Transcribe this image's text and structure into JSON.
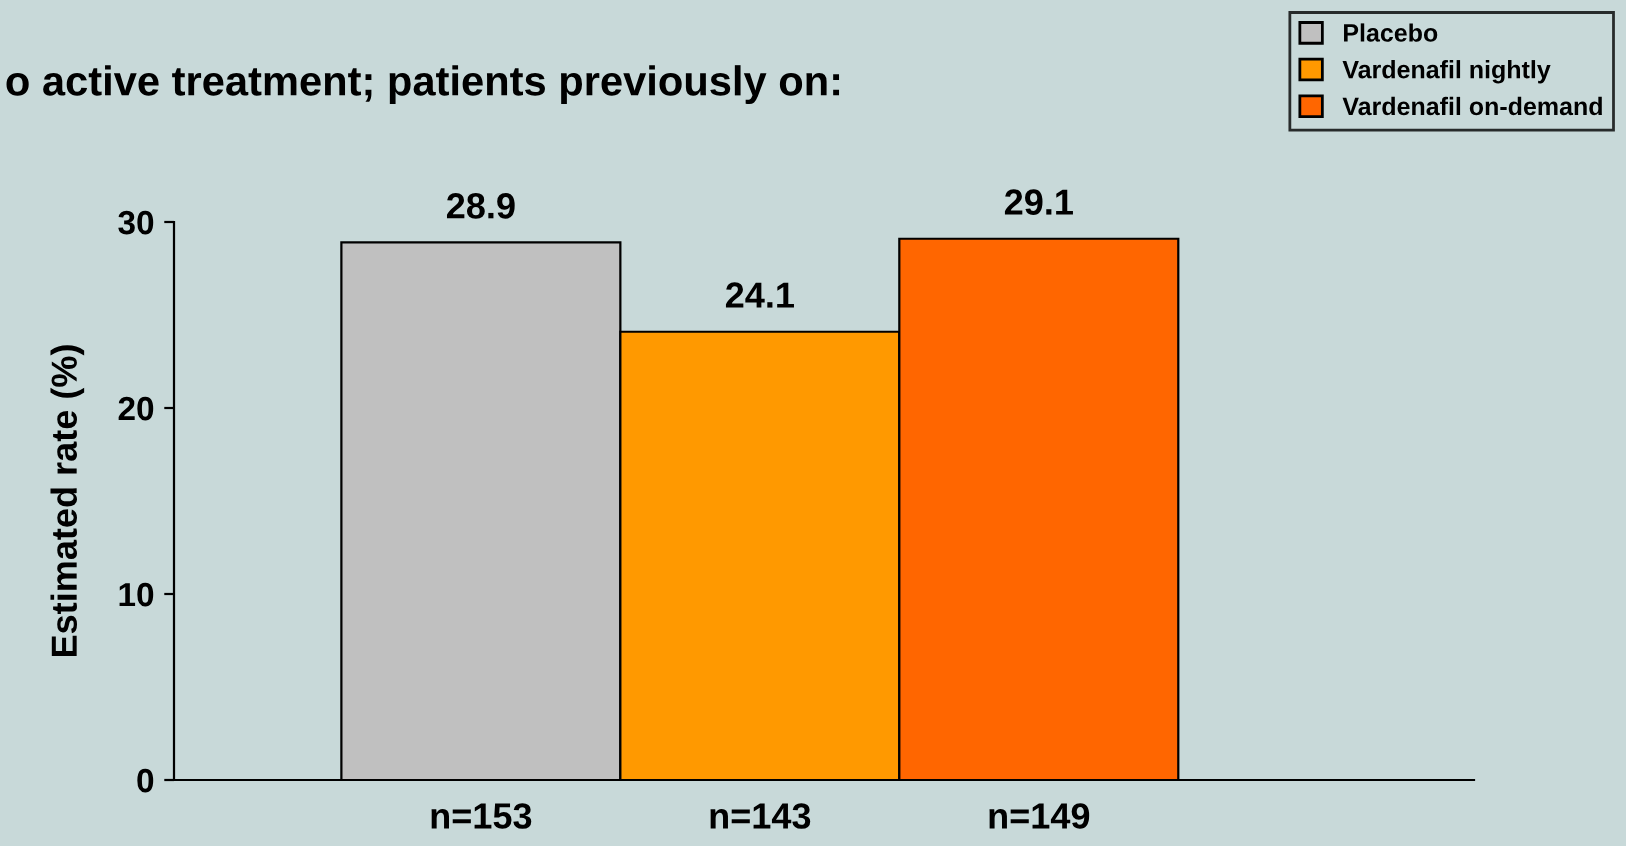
{
  "chart_data": {
    "type": "bar",
    "title": "o active treatment; patients previously on:",
    "ylabel": "Estimated rate (%)",
    "categories": [
      "n=153",
      "n=143",
      "n=149"
    ],
    "series": [
      {
        "name": "Placebo",
        "color": "#c0c0c0",
        "values": [
          28.9,
          null,
          null
        ]
      },
      {
        "name": "Vardenafil nightly",
        "color": "#ff9900",
        "values": [
          null,
          24.1,
          null
        ]
      },
      {
        "name": "Vardenafil on-demand",
        "color": "#ff6600",
        "values": [
          null,
          null,
          29.1
        ]
      }
    ],
    "ylim": [
      0,
      30
    ],
    "yticks": [
      0,
      10,
      20,
      30
    ],
    "data_labels": true,
    "grid": false,
    "legend": "top right"
  }
}
